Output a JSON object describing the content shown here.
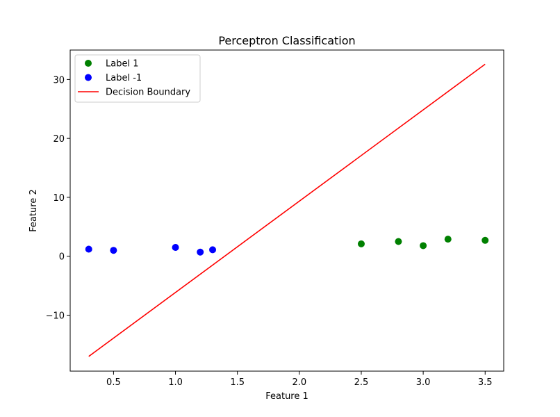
{
  "chart_data": {
    "type": "scatter",
    "title": "Perceptron Classification",
    "xlabel": "Feature 1",
    "ylabel": "Feature 2",
    "xlim": [
      0.15,
      3.65
    ],
    "ylim": [
      -19.5,
      35
    ],
    "xticks": [
      0.5,
      1.0,
      1.5,
      2.0,
      2.5,
      3.0,
      3.5
    ],
    "xtick_labels": [
      "0.5",
      "1.0",
      "1.5",
      "2.0",
      "2.5",
      "3.0",
      "3.5"
    ],
    "yticks": [
      -10,
      0,
      10,
      20,
      30
    ],
    "ytick_labels": [
      "−10",
      "0",
      "10",
      "20",
      "30"
    ],
    "grid": false,
    "legend_position": "top-left",
    "series": [
      {
        "name": "Label 1",
        "kind": "scatter",
        "color": "#008000",
        "x": [
          2.5,
          2.8,
          3.0,
          3.2,
          3.5
        ],
        "y": [
          2.1,
          2.5,
          1.8,
          2.9,
          2.7
        ]
      },
      {
        "name": "Label -1",
        "kind": "scatter",
        "color": "#0000ff",
        "x": [
          0.3,
          0.5,
          1.0,
          1.2,
          1.3
        ],
        "y": [
          1.2,
          1.0,
          1.5,
          0.7,
          1.1
        ]
      },
      {
        "name": "Decision Boundary",
        "kind": "line",
        "color": "#ff0000",
        "x": [
          0.3,
          3.5
        ],
        "y": [
          -17.0,
          32.6
        ]
      }
    ]
  }
}
